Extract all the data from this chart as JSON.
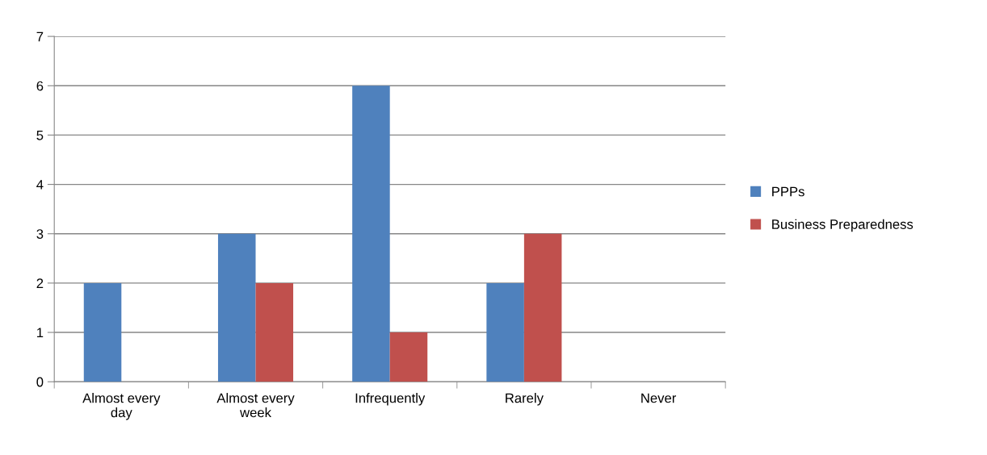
{
  "chart_data": {
    "type": "bar",
    "categories": [
      "Almost every day",
      "Almost every week",
      "Infrequently",
      "Rarely",
      "Never"
    ],
    "series": [
      {
        "name": "PPPs",
        "color": "#4f81bd",
        "values": [
          2,
          3,
          6,
          2,
          0
        ]
      },
      {
        "name": "Business Preparedness",
        "color": "#c0504d",
        "values": [
          0,
          2,
          1,
          3,
          0
        ]
      }
    ],
    "ylim": [
      0,
      7
    ],
    "yticks": [
      0,
      1,
      2,
      3,
      4,
      5,
      6,
      7
    ],
    "grid": "y",
    "legend": "right"
  }
}
